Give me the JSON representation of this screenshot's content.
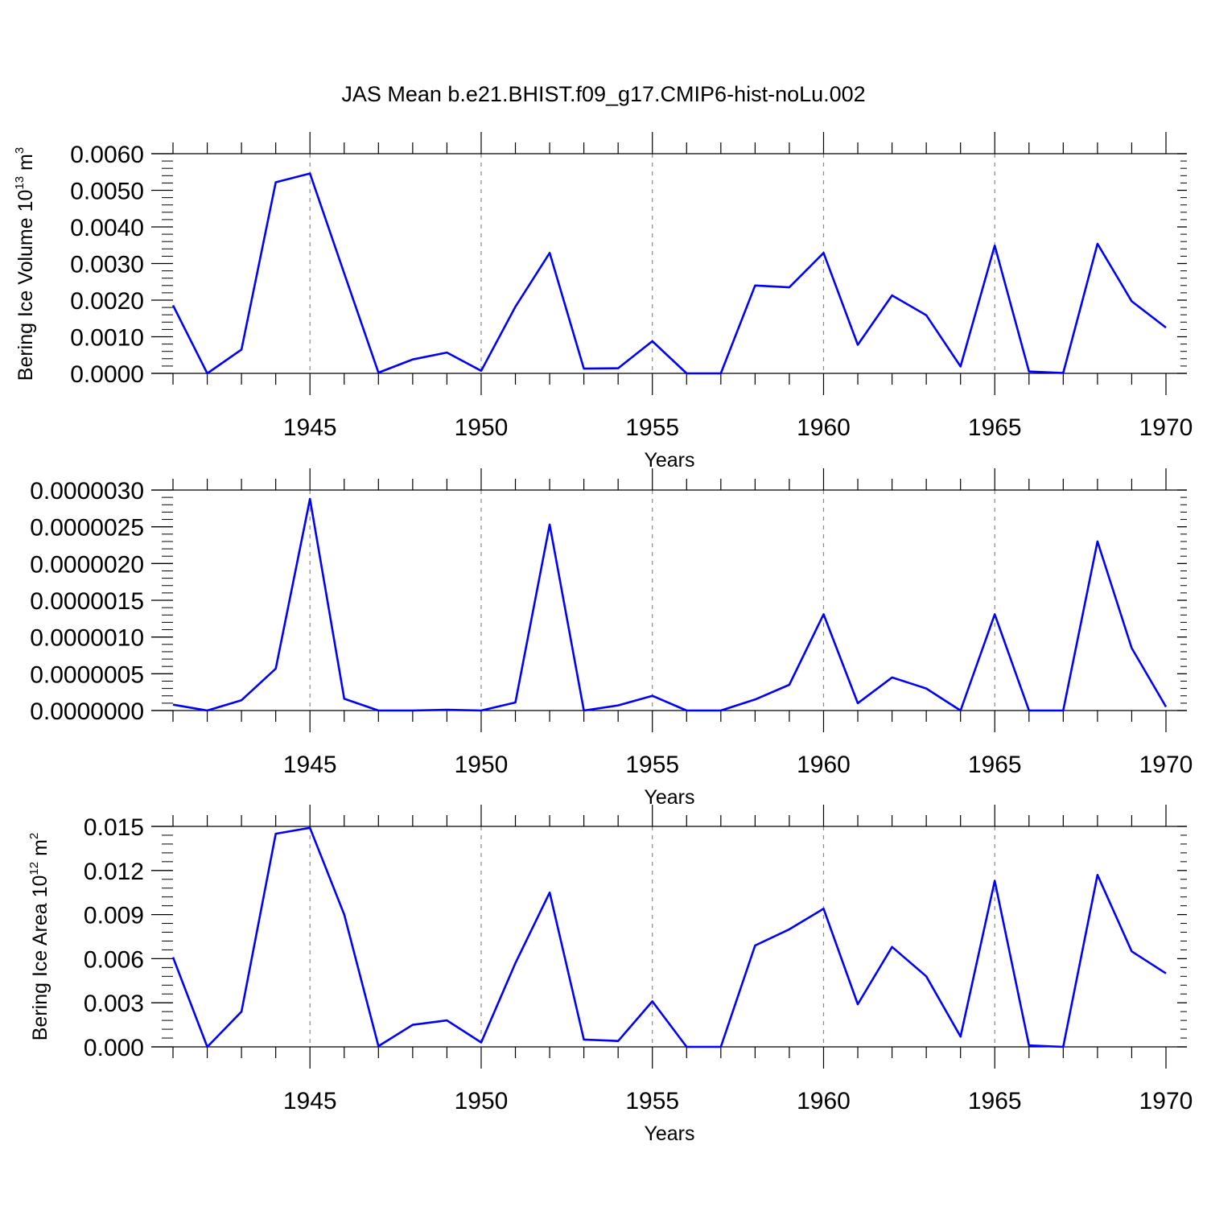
{
  "title": "JAS Mean b.e21.BHIST.f09_g17.CMIP6-hist-noLu.002",
  "colors": {
    "line": "#0000ff",
    "axis": "#000000",
    "grid": "#888888"
  },
  "chart_data": [
    {
      "type": "line",
      "xlabel": "Years",
      "ylabel": {
        "prefix": "Bering Ice Volume 10",
        "exp": "13",
        "unit": " m",
        "unit_exp": "3"
      },
      "ylim": [
        0,
        0.006
      ],
      "yticks": [
        0,
        0.001,
        0.002,
        0.003,
        0.004,
        0.005,
        0.006
      ],
      "ytick_labels": [
        "0.0000",
        "0.0010",
        "0.0020",
        "0.0030",
        "0.0040",
        "0.0050",
        "0.0060"
      ],
      "xlim": [
        1941,
        1970
      ],
      "xticks": [
        1945,
        1950,
        1955,
        1960,
        1965,
        1970
      ],
      "xtick_labels": [
        "1945",
        "1950",
        "1955",
        "1960",
        "1965",
        "1970"
      ],
      "x": [
        1941,
        1942,
        1943,
        1944,
        1945,
        1946,
        1947,
        1948,
        1949,
        1950,
        1951,
        1952,
        1953,
        1954,
        1955,
        1956,
        1957,
        1958,
        1959,
        1960,
        1961,
        1962,
        1963,
        1964,
        1965,
        1966,
        1967,
        1968,
        1969,
        1970
      ],
      "values": [
        0.00186,
        0.0,
        0.00065,
        0.00522,
        0.00546,
        0.00273,
        2e-05,
        0.00038,
        0.00057,
        7e-05,
        0.00182,
        0.00329,
        0.00013,
        0.00014,
        0.00088,
        0.0,
        0.0,
        0.0024,
        0.00235,
        0.00329,
        0.00078,
        0.00213,
        0.00159,
        0.00019,
        0.00349,
        5e-05,
        1e-05,
        0.00354,
        0.00197,
        0.00125
      ]
    },
    {
      "type": "line",
      "xlabel": "Years",
      "ylabel": null,
      "ylim": [
        0,
        3e-06
      ],
      "yticks": [
        0,
        5e-07,
        1e-06,
        1.5e-06,
        2e-06,
        2.5e-06,
        3e-06
      ],
      "ytick_labels": [
        "0.0000000",
        "0.0000005",
        "0.0000010",
        "0.0000015",
        "0.0000020",
        "0.0000025",
        "0.0000030"
      ],
      "xlim": [
        1941,
        1970
      ],
      "xticks": [
        1945,
        1950,
        1955,
        1960,
        1965,
        1970
      ],
      "xtick_labels": [
        "1945",
        "1950",
        "1955",
        "1960",
        "1965",
        "1970"
      ],
      "x": [
        1941,
        1942,
        1943,
        1944,
        1945,
        1946,
        1947,
        1948,
        1949,
        1950,
        1951,
        1952,
        1953,
        1954,
        1955,
        1956,
        1957,
        1958,
        1959,
        1960,
        1961,
        1962,
        1963,
        1964,
        1965,
        1966,
        1967,
        1968,
        1969,
        1970
      ],
      "values": [
        8e-08,
        0.0,
        1.4e-07,
        5.7e-07,
        2.88e-06,
        1.6e-07,
        0.0,
        0.0,
        1e-08,
        0.0,
        1.1e-07,
        2.53e-06,
        0.0,
        7e-08,
        2e-07,
        0.0,
        0.0,
        1.5e-07,
        3.5e-07,
        1.31e-06,
        1e-07,
        4.5e-07,
        3e-07,
        0.0,
        1.31e-06,
        0.0,
        0.0,
        2.3e-06,
        8.5e-07,
        5e-08
      ]
    },
    {
      "type": "line",
      "xlabel": "Years",
      "ylabel": {
        "prefix": "Bering Ice Area 10",
        "exp": "12",
        "unit": " m",
        "unit_exp": "2"
      },
      "ylim": [
        0,
        0.015
      ],
      "yticks": [
        0,
        0.003,
        0.006,
        0.009,
        0.012,
        0.015
      ],
      "ytick_labels": [
        "0.000",
        "0.003",
        "0.006",
        "0.009",
        "0.012",
        "0.015"
      ],
      "xlim": [
        1941,
        1970
      ],
      "xticks": [
        1945,
        1950,
        1955,
        1960,
        1965,
        1970
      ],
      "xtick_labels": [
        "1945",
        "1950",
        "1955",
        "1960",
        "1965",
        "1970"
      ],
      "x": [
        1941,
        1942,
        1943,
        1944,
        1945,
        1946,
        1947,
        1948,
        1949,
        1950,
        1951,
        1952,
        1953,
        1954,
        1955,
        1956,
        1957,
        1958,
        1959,
        1960,
        1961,
        1962,
        1963,
        1964,
        1965,
        1966,
        1967,
        1968,
        1969,
        1970
      ],
      "values": [
        0.0061,
        0.0,
        0.0024,
        0.0145,
        0.0149,
        0.009,
        5e-05,
        0.0015,
        0.0018,
        0.0003,
        0.0057,
        0.0105,
        0.0005,
        0.0004,
        0.0031,
        0.0,
        0.0,
        0.0069,
        0.008,
        0.0094,
        0.0029,
        0.0068,
        0.0048,
        0.0007,
        0.0113,
        0.0001,
        0.0,
        0.0117,
        0.0065,
        0.005
      ]
    }
  ]
}
